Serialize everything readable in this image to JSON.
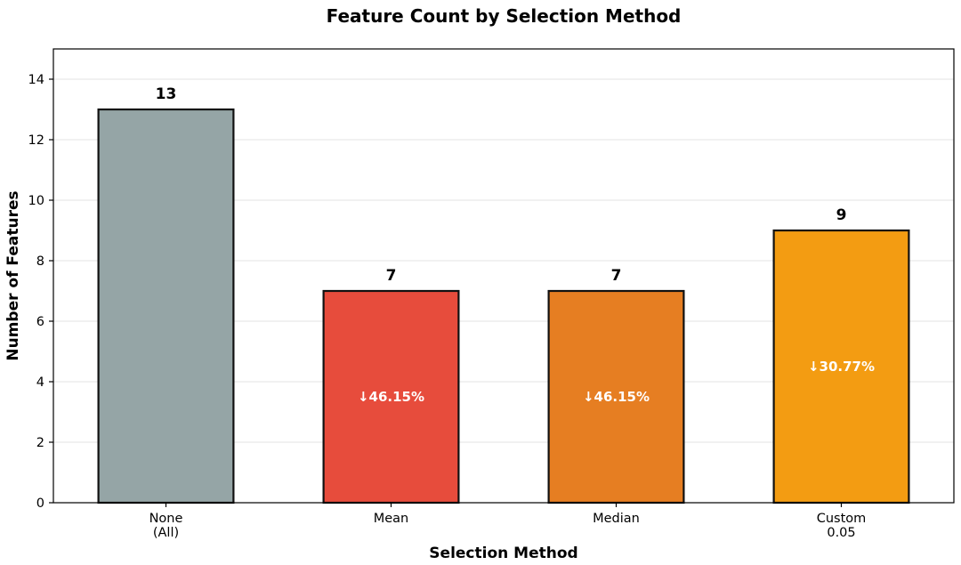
{
  "chart_data": {
    "type": "bar",
    "title": "Feature Count by Selection Method",
    "xlabel": "Selection Method",
    "ylabel": "Number of Features",
    "categories": [
      [
        "None",
        "(All)"
      ],
      [
        "Mean"
      ],
      [
        "Median"
      ],
      [
        "Custom",
        "0.05"
      ]
    ],
    "values": [
      13,
      7,
      7,
      9
    ],
    "value_labels": [
      "13",
      "7",
      "7",
      "9"
    ],
    "reduction_labels": [
      "",
      "↓46.15%",
      "↓46.15%",
      "↓30.77%"
    ],
    "colors": [
      "#95a5a6",
      "#e74c3c",
      "#e67e22",
      "#f39c12"
    ],
    "ylim": [
      0,
      15
    ],
    "yticks": [
      0,
      2,
      4,
      6,
      8,
      10,
      12,
      14
    ],
    "grid": true
  }
}
